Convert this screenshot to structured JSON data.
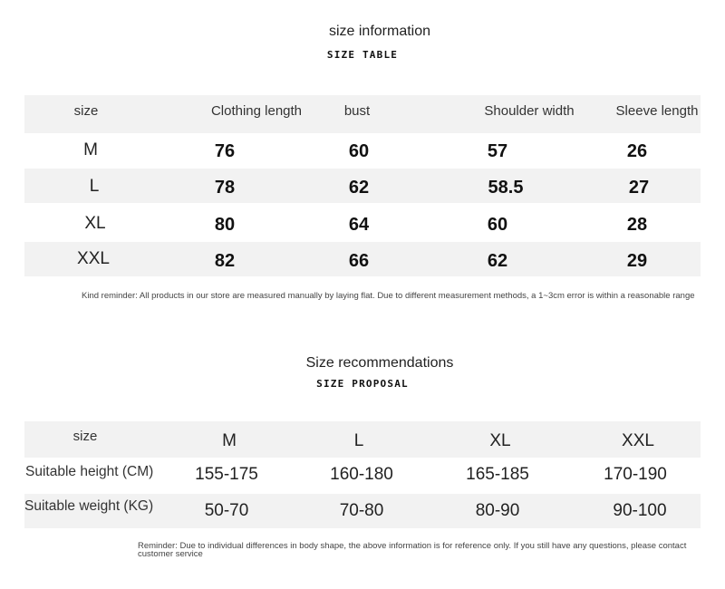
{
  "size_table": {
    "title": "size information",
    "subtitle": "SIZE TABLE",
    "headers": [
      "size",
      "Clothing length",
      "bust",
      "Shoulder width",
      "Sleeve length"
    ],
    "rows": [
      [
        "M",
        "76",
        "60",
        "57",
        "26"
      ],
      [
        "L",
        "78",
        "62",
        "58.5",
        "27"
      ],
      [
        "XL",
        "80",
        "64",
        "60",
        "28"
      ],
      [
        "XXL",
        "82",
        "66",
        "62",
        "29"
      ]
    ],
    "note": "Kind reminder: All products in our store are measured manually by laying flat. Due to different measurement methods, a 1~3cm error is within a reasonable range"
  },
  "recommendations": {
    "title": "Size recommendations",
    "subtitle": "SIZE PROPOSAL",
    "header_label": "size",
    "sizes": [
      "M",
      "L",
      "XL",
      "XXL"
    ],
    "rows": [
      {
        "label": "Suitable height (CM)",
        "values": [
          "155-175",
          "160-180",
          "165-185",
          "170-190"
        ]
      },
      {
        "label": "Suitable weight (KG)",
        "values": [
          "50-70",
          "70-80",
          "80-90",
          "90-100"
        ]
      }
    ],
    "note": "Reminder: Due to individual differences in body shape, the above information is for reference only. If you still have any questions, please contact customer service"
  }
}
